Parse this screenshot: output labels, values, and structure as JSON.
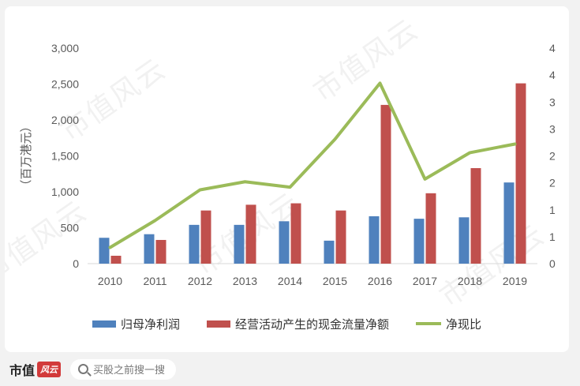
{
  "chart_data": {
    "type": "bar",
    "categories": [
      "2010",
      "2011",
      "2012",
      "2013",
      "2014",
      "2015",
      "2016",
      "2017",
      "2018",
      "2019"
    ],
    "series": [
      {
        "name": "归母净利润",
        "type": "bar",
        "axis": "left",
        "color": "#4f81bd",
        "values": [
          360,
          410,
          540,
          540,
          590,
          320,
          660,
          625,
          645,
          1130
        ]
      },
      {
        "name": "经营活动产生的现金流量净额",
        "type": "bar",
        "axis": "left",
        "color": "#c0504d",
        "values": [
          110,
          330,
          740,
          820,
          840,
          740,
          2210,
          980,
          1330,
          2510
        ]
      },
      {
        "name": "净现比",
        "type": "line",
        "axis": "right",
        "color": "#9bbb59",
        "values": [
          0.3,
          0.8,
          1.37,
          1.52,
          1.42,
          2.31,
          3.35,
          1.57,
          2.06,
          2.22
        ]
      }
    ],
    "ylabel": "（百万港元）",
    "ylim": [
      0,
      3000
    ],
    "yticks": [
      {
        "v": 0,
        "label": "0"
      },
      {
        "v": 500,
        "label": "500"
      },
      {
        "v": 1000,
        "label": "1,000"
      },
      {
        "v": 1500,
        "label": "1,500"
      },
      {
        "v": 2000,
        "label": "2,000"
      },
      {
        "v": 2500,
        "label": "2,500"
      },
      {
        "v": 3000,
        "label": "3,000"
      }
    ],
    "y2lim": [
      0,
      4
    ],
    "y2ticks": [
      {
        "v": 0,
        "label": "0"
      },
      {
        "v": 0.5,
        "label": "1"
      },
      {
        "v": 1,
        "label": "1"
      },
      {
        "v": 1.5,
        "label": "2"
      },
      {
        "v": 2,
        "label": "2"
      },
      {
        "v": 2.5,
        "label": "3"
      },
      {
        "v": 3,
        "label": "3"
      },
      {
        "v": 3.5,
        "label": "4"
      },
      {
        "v": 4,
        "label": "4"
      }
    ],
    "grid": false,
    "legend": "bottom"
  },
  "watermark": "市值风云",
  "footer": {
    "brand": "市值",
    "brand_mark": "风云",
    "search_placeholder": "买股之前搜一搜"
  }
}
